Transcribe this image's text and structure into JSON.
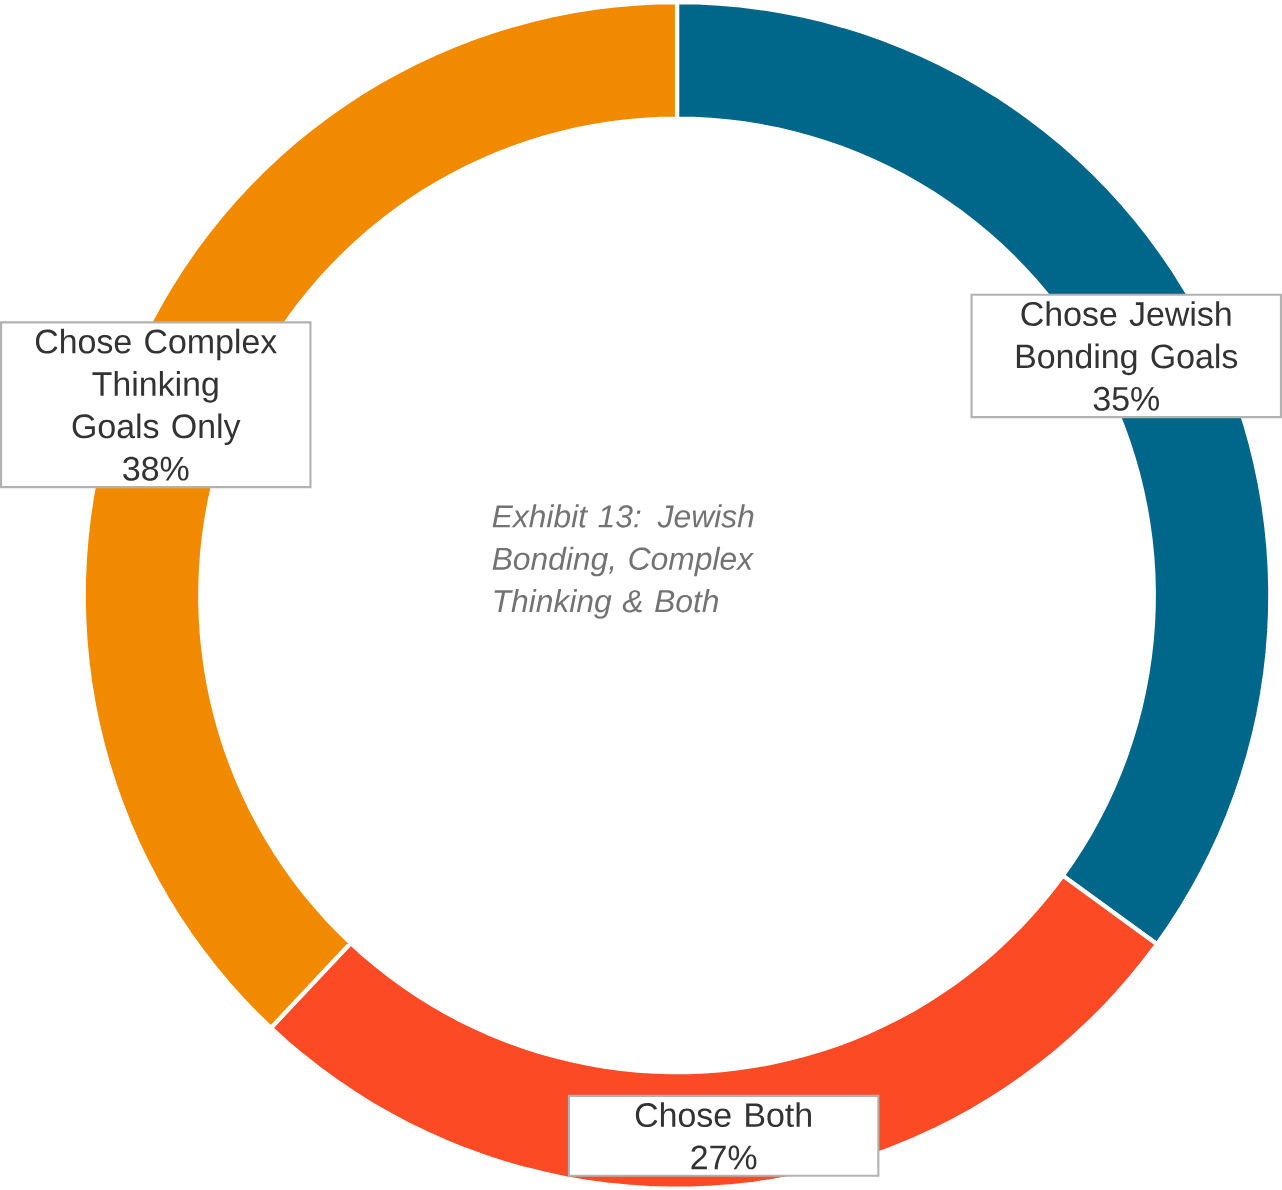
{
  "chart_data": {
    "type": "donut",
    "title": "Exhibit 13: Jewish Bonding, Complex Thinking & Both",
    "categories": [
      "Chose Jewish Bonding Goals",
      "Chose Both",
      "Chose Complex Thinking Goals Only"
    ],
    "values": [
      35,
      27,
      38
    ],
    "value_labels": [
      "35%",
      "27%",
      "38%"
    ],
    "colors": [
      "#00678a",
      "#fb4a24",
      "#f28a00"
    ]
  }
}
